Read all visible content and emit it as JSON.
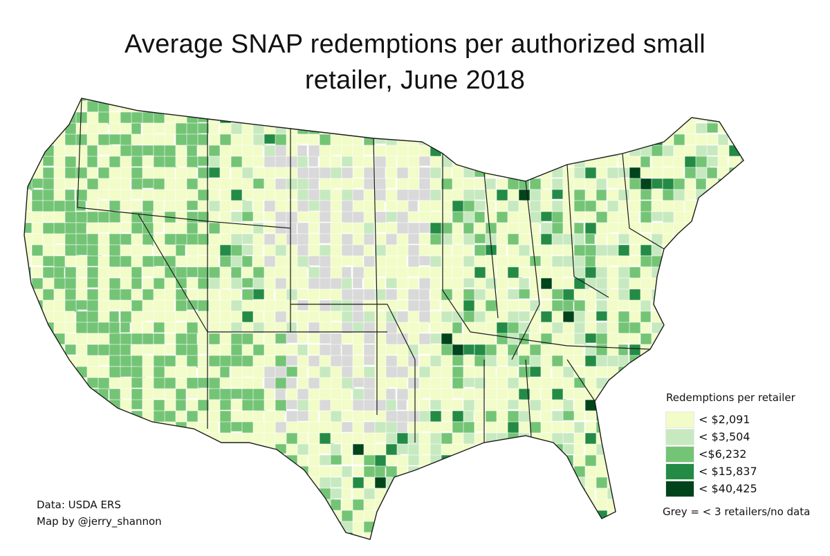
{
  "title": {
    "line1": "Average SNAP redemptions per authorized small",
    "line2": "retailer, June 2018"
  },
  "legend": {
    "title": "Redemptions per retailer",
    "bins": [
      {
        "label": "< $2,091",
        "max": 2091,
        "color": "#f1fcc8"
      },
      {
        "label": "< $3,504",
        "max": 3504,
        "color": "#c7e9c0"
      },
      {
        "label": "<$6,232",
        "max": 6232,
        "color": "#74c476"
      },
      {
        "label": "< $15,837",
        "max": 15837,
        "color": "#238b45"
      },
      {
        "label": "< $40,425",
        "max": 40425,
        "color": "#00441b"
      }
    ],
    "no_data_color": "#d9d9d9",
    "note": "Grey = < 3 retailers/no data"
  },
  "credits": {
    "data_source": "Data: USDA ERS",
    "author": "Map by @jerry_shannon"
  },
  "map": {
    "subject": "Contiguous United States, county-level choropleth",
    "border_color": "#1a1a1a",
    "county_line_color": "#ffffff"
  }
}
